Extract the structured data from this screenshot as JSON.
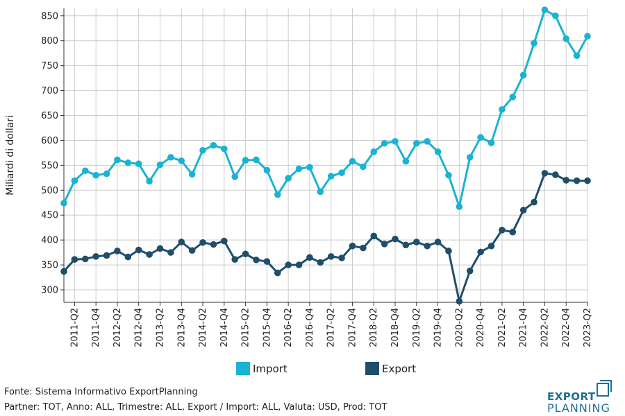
{
  "chart_data": {
    "type": "line",
    "title": "",
    "xlabel": "",
    "ylabel": "Miliardi di dollari",
    "ylim": [
      275,
      865
    ],
    "yticks": [
      300,
      350,
      400,
      450,
      500,
      550,
      600,
      650,
      700,
      750,
      800,
      850
    ],
    "grid": true,
    "legend_position": "bottom-center",
    "x": [
      "2011-Q1",
      "2011-Q2",
      "2011-Q3",
      "2011-Q4",
      "2012-Q1",
      "2012-Q2",
      "2012-Q3",
      "2012-Q4",
      "2013-Q1",
      "2013-Q2",
      "2013-Q3",
      "2013-Q4",
      "2014-Q1",
      "2014-Q2",
      "2014-Q3",
      "2014-Q4",
      "2015-Q1",
      "2015-Q2",
      "2015-Q3",
      "2015-Q4",
      "2016-Q1",
      "2016-Q2",
      "2016-Q3",
      "2016-Q4",
      "2017-Q1",
      "2017-Q2",
      "2017-Q3",
      "2017-Q4",
      "2018-Q1",
      "2018-Q2",
      "2018-Q3",
      "2018-Q4",
      "2019-Q1",
      "2019-Q2",
      "2019-Q3",
      "2019-Q4",
      "2020-Q1",
      "2020-Q2",
      "2020-Q3",
      "2020-Q4",
      "2021-Q1",
      "2021-Q2",
      "2021-Q3",
      "2021-Q4",
      "2022-Q1",
      "2022-Q2",
      "2022-Q3",
      "2022-Q4",
      "2023-Q1",
      "2023-Q2"
    ],
    "xtick_labels": [
      "2011-Q2",
      "2011-Q4",
      "2012-Q2",
      "2012-Q4",
      "2013-Q2",
      "2013-Q4",
      "2014-Q2",
      "2014-Q4",
      "2015-Q2",
      "2015-Q4",
      "2016-Q2",
      "2016-Q4",
      "2017-Q2",
      "2017-Q4",
      "2018-Q2",
      "2018-Q4",
      "2019-Q2",
      "2019-Q4",
      "2020-Q2",
      "2020-Q4",
      "2021-Q2",
      "2021-Q4",
      "2022-Q2",
      "2022-Q4",
      "2023-Q2"
    ],
    "series": [
      {
        "name": "Import",
        "color": "#1ab3d1",
        "values": [
          474,
          519,
          539,
          530,
          533,
          561,
          555,
          553,
          518,
          551,
          566,
          559,
          532,
          580,
          590,
          583,
          527,
          560,
          561,
          540,
          491,
          524,
          543,
          546,
          497,
          528,
          535,
          558,
          547,
          577,
          594,
          598,
          558,
          594,
          598,
          577,
          530,
          467,
          566,
          606,
          595,
          662,
          687,
          731,
          795,
          862,
          850,
          804,
          770,
          809
        ]
      },
      {
        "name": "Export",
        "color": "#1f4e6b",
        "values": [
          337,
          361,
          362,
          367,
          369,
          378,
          366,
          380,
          371,
          383,
          375,
          396,
          379,
          395,
          391,
          398,
          361,
          372,
          360,
          357,
          334,
          350,
          350,
          365,
          355,
          367,
          364,
          388,
          384,
          408,
          392,
          402,
          390,
          396,
          388,
          396,
          378,
          277,
          338,
          376,
          388,
          420,
          416,
          460,
          476,
          534,
          531,
          520,
          519,
          519
        ]
      }
    ]
  },
  "footer": {
    "source": "Fonte: Sistema Informativo ExportPlanning",
    "filters": "Partner: TOT, Anno: ALL, Trimestre: ALL, Export / Import: ALL, Valuta: USD, Prod: TOT"
  },
  "logo": {
    "line1": "EXPORT",
    "line2": "PLANNING"
  }
}
